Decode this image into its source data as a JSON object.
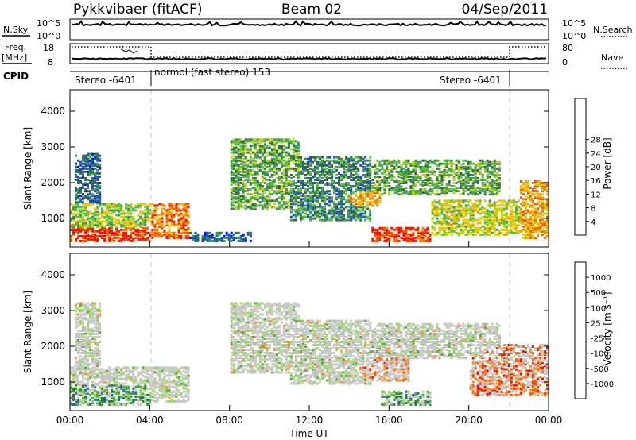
{
  "header": {
    "title_left": "Pykkvibaer (fitACF)",
    "title_center": "Beam 02",
    "title_right": "04/Sep/2011"
  },
  "chart_data": [
    {
      "type": "line",
      "panel": "noise",
      "left_label": "N.Sky",
      "right_label": "N.Search",
      "left_ticks": [
        "10^5",
        "10^0"
      ],
      "right_ticks": [
        "10^5",
        "10^0"
      ],
      "series": [
        {
          "name": "N.Sky",
          "style": "solid"
        },
        {
          "name": "N.Search",
          "style": "dotted"
        }
      ]
    },
    {
      "type": "line",
      "panel": "frequency",
      "left_label_1": "Freq.",
      "left_label_2": "[MHz]",
      "right_label": "Nave",
      "left_ticks": [
        "18",
        "8"
      ],
      "right_ticks": [
        "80",
        "0"
      ],
      "series": [
        {
          "name": "Freq.",
          "style": "solid"
        },
        {
          "name": "Nave",
          "style": "dotted"
        }
      ]
    },
    {
      "type": "table",
      "panel": "cpid",
      "label": "CPID",
      "segments": [
        {
          "text": "Stereo -6401",
          "start_hour": 0,
          "end_hour": 4
        },
        {
          "text": "normol (fast stereo) 153",
          "start_hour": 4,
          "end_hour": 22
        },
        {
          "text": "Stereo -6401",
          "start_hour": 22,
          "end_hour": 24
        }
      ]
    },
    {
      "type": "heatmap",
      "panel": "power",
      "ylabel": "Slant Range [km]",
      "yticks": [
        1000,
        2000,
        3000,
        4000
      ],
      "ylim": [
        200,
        4600
      ],
      "xlim": [
        0,
        24
      ],
      "colorbar": {
        "label": "Power [dB]",
        "ticks": [
          4,
          8,
          12,
          16,
          20,
          24,
          28
        ],
        "colors": [
          "#0018f0",
          "#2050c0",
          "#2e6e3e",
          "#3c9a58",
          "#58c038",
          "#c8d010",
          "#f0c000",
          "#f09000",
          "#f05800",
          "#e81800"
        ]
      },
      "regions": [
        {
          "x": [
            0.0,
            4.0
          ],
          "y": [
            300,
            700
          ],
          "level": 0.95
        },
        {
          "x": [
            0.0,
            4.0
          ],
          "y": [
            700,
            1400
          ],
          "level": 0.5
        },
        {
          "x": [
            0.2,
            1.5
          ],
          "y": [
            1400,
            2800
          ],
          "level": 0.2
        },
        {
          "x": [
            4.0,
            6.0
          ],
          "y": [
            400,
            1400
          ],
          "level": 0.8
        },
        {
          "x": [
            6.0,
            9.0
          ],
          "y": [
            300,
            600
          ],
          "level": 0.2
        },
        {
          "x": [
            8.0,
            11.5
          ],
          "y": [
            1200,
            3200
          ],
          "level": 0.4
        },
        {
          "x": [
            11.0,
            15.0
          ],
          "y": [
            900,
            2700
          ],
          "level": 0.3
        },
        {
          "x": [
            13.5,
            15.5
          ],
          "y": [
            1300,
            1800
          ],
          "level": 0.7
        },
        {
          "x": [
            15.0,
            21.5
          ],
          "y": [
            1600,
            2600
          ],
          "level": 0.4
        },
        {
          "x": [
            15.0,
            18.0
          ],
          "y": [
            300,
            700
          ],
          "level": 0.95
        },
        {
          "x": [
            18.0,
            22.5
          ],
          "y": [
            500,
            1500
          ],
          "level": 0.55
        },
        {
          "x": [
            22.5,
            24.0
          ],
          "y": [
            400,
            2000
          ],
          "level": 0.7
        }
      ]
    },
    {
      "type": "heatmap",
      "panel": "velocity",
      "ylabel": "Slant Range [km]",
      "yticks": [
        1000,
        2000,
        3000,
        4000
      ],
      "ylim": [
        200,
        4600
      ],
      "xlim": [
        0,
        24
      ],
      "xticks": [
        "00:00",
        "04:00",
        "08:00",
        "12:00",
        "16:00",
        "20:00",
        "00:00"
      ],
      "xlabel": "Time UT",
      "colorbar": {
        "label": "Velocity [m s⁻¹]",
        "ticks": [
          1000,
          500,
          100,
          25,
          -25,
          -100,
          -500,
          -1000
        ],
        "colors": [
          "#0830c8",
          "#2060a0",
          "#2e7e3e",
          "#50b030",
          "#98d860",
          "#c8c8c8",
          "#c8c8c8",
          "#f09030",
          "#f06000",
          "#e81800"
        ]
      },
      "regions": [
        {
          "x": [
            0.0,
            4.0
          ],
          "y": [
            300,
            900
          ],
          "level": 0.3
        },
        {
          "x": [
            0.0,
            4.0
          ],
          "y": [
            900,
            1400
          ],
          "level": 0.55
        },
        {
          "x": [
            0.2,
            1.5
          ],
          "y": [
            1400,
            3200
          ],
          "level": 0.55
        },
        {
          "x": [
            4.0,
            6.0
          ],
          "y": [
            400,
            1400
          ],
          "level": 0.55
        },
        {
          "x": [
            8.0,
            11.5
          ],
          "y": [
            1200,
            3200
          ],
          "level": 0.55
        },
        {
          "x": [
            11.0,
            15.0
          ],
          "y": [
            900,
            2700
          ],
          "level": 0.55
        },
        {
          "x": [
            14.5,
            17.0
          ],
          "y": [
            1000,
            1700
          ],
          "level": 0.75
        },
        {
          "x": [
            15.5,
            18.0
          ],
          "y": [
            300,
            700
          ],
          "level": 0.3
        },
        {
          "x": [
            15.0,
            21.5
          ],
          "y": [
            1600,
            2600
          ],
          "level": 0.55
        },
        {
          "x": [
            20.0,
            24.0
          ],
          "y": [
            600,
            2000
          ],
          "level": 0.8
        }
      ]
    }
  ]
}
